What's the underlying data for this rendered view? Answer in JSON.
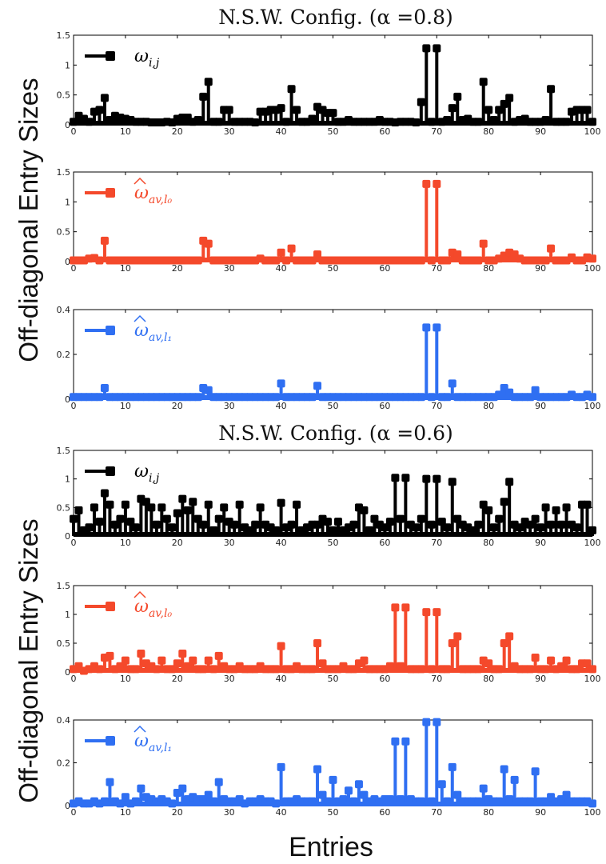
{
  "figure": {
    "ylabel": "Off-diagonal Entry Sizes",
    "xlabel": "Entries"
  },
  "chart_data": [
    {
      "type": "stem",
      "title": "N.S.W. Config. (α =0.8)",
      "series_label": "ω",
      "series_sub": "i,j",
      "hat": false,
      "color": "#000000",
      "ylim": [
        0,
        1.5
      ],
      "yticks": [
        0,
        0.5,
        1,
        1.5
      ],
      "yticklabels": [
        "0",
        "0.5",
        "1",
        "1.5"
      ],
      "xlim": [
        0,
        100
      ],
      "xticks": [
        "0",
        "10",
        "20",
        "30",
        "40",
        "50",
        "60",
        "70",
        "80",
        "90",
        "100"
      ],
      "values": [
        0.05,
        0.15,
        0.1,
        0.05,
        0.22,
        0.25,
        0.45,
        0.08,
        0.15,
        0.12,
        0.1,
        0.08,
        0.05,
        0.05,
        0.05,
        0.04,
        0.04,
        0.04,
        0.05,
        0.04,
        0.1,
        0.12,
        0.12,
        0.05,
        0.08,
        0.47,
        0.72,
        0.05,
        0.05,
        0.25,
        0.25,
        0.05,
        0.05,
        0.05,
        0.05,
        0.04,
        0.22,
        0.22,
        0.25,
        0.25,
        0.28,
        0.05,
        0.6,
        0.25,
        0.05,
        0.05,
        0.1,
        0.3,
        0.25,
        0.2,
        0.2,
        0.05,
        0.05,
        0.08,
        0.05,
        0.05,
        0.05,
        0.05,
        0.05,
        0.08,
        0.05,
        0.05,
        0.04,
        0.05,
        0.05,
        0.05,
        0.04,
        0.38,
        1.28,
        0.05,
        1.28,
        0.05,
        0.08,
        0.28,
        0.47,
        0.08,
        0.1,
        0.05,
        0.05,
        0.72,
        0.25,
        0.08,
        0.25,
        0.35,
        0.45,
        0.05,
        0.08,
        0.1,
        0.05,
        0.05,
        0.05,
        0.08,
        0.6,
        0.05,
        0.05,
        0.05,
        0.22,
        0.25,
        0.25,
        0.25,
        0.05
      ]
    },
    {
      "type": "stem",
      "title": "",
      "series_label": "ω",
      "series_sub": "av,l₀",
      "hat": true,
      "color": "#f4492b",
      "ylim": [
        0,
        1.5
      ],
      "yticks": [
        0,
        0.5,
        1,
        1.5
      ],
      "yticklabels": [
        "0",
        "0.5",
        "1",
        "1.5"
      ],
      "xlim": [
        0,
        100
      ],
      "xticks": [
        "0",
        "10",
        "20",
        "30",
        "40",
        "50",
        "60",
        "70",
        "80",
        "90",
        "100"
      ],
      "values": [
        0.02,
        0.02,
        0.02,
        0.05,
        0.06,
        0.02,
        0.35,
        0.02,
        0.02,
        0.02,
        0.02,
        0.02,
        0.02,
        0.02,
        0.02,
        0.02,
        0.02,
        0.02,
        0.02,
        0.02,
        0.02,
        0.02,
        0.02,
        0.02,
        0.02,
        0.35,
        0.3,
        0.02,
        0.02,
        0.02,
        0.02,
        0.02,
        0.02,
        0.02,
        0.02,
        0.02,
        0.05,
        0.02,
        0.02,
        0.02,
        0.15,
        0.02,
        0.22,
        0.02,
        0.02,
        0.02,
        0.02,
        0.12,
        0.02,
        0.02,
        0.02,
        0.02,
        0.02,
        0.02,
        0.02,
        0.02,
        0.02,
        0.02,
        0.02,
        0.02,
        0.02,
        0.02,
        0.02,
        0.02,
        0.02,
        0.02,
        0.02,
        0.02,
        1.3,
        0.02,
        1.3,
        0.02,
        0.02,
        0.15,
        0.12,
        0.02,
        0.02,
        0.02,
        0.02,
        0.3,
        0.02,
        0.02,
        0.05,
        0.1,
        0.15,
        0.12,
        0.05,
        0.02,
        0.02,
        0.02,
        0.02,
        0.02,
        0.22,
        0.02,
        0.02,
        0.02,
        0.07,
        0.02,
        0.02,
        0.07,
        0.05
      ]
    },
    {
      "type": "stem",
      "title": "",
      "series_label": "ω",
      "series_sub": "av,l₁",
      "hat": true,
      "color": "#2f6ff2",
      "ylim": [
        0,
        0.4
      ],
      "yticks": [
        0,
        0.2,
        0.4
      ],
      "yticklabels": [
        "0",
        "0.2",
        "0.4"
      ],
      "xlim": [
        0,
        100
      ],
      "xticks": [
        "0",
        "10",
        "20",
        "30",
        "40",
        "50",
        "60",
        "70",
        "80",
        "90",
        "100"
      ],
      "values": [
        0.01,
        0.01,
        0.01,
        0.01,
        0.01,
        0.01,
        0.05,
        0.01,
        0.01,
        0.01,
        0.01,
        0.01,
        0.01,
        0.01,
        0.01,
        0.01,
        0.01,
        0.01,
        0.01,
        0.01,
        0.01,
        0.01,
        0.01,
        0.01,
        0.01,
        0.05,
        0.04,
        0.01,
        0.01,
        0.01,
        0.01,
        0.01,
        0.01,
        0.01,
        0.01,
        0.01,
        0.01,
        0.01,
        0.01,
        0.01,
        0.07,
        0.01,
        0.01,
        0.01,
        0.01,
        0.01,
        0.01,
        0.06,
        0.01,
        0.01,
        0.01,
        0.01,
        0.01,
        0.01,
        0.01,
        0.01,
        0.01,
        0.01,
        0.01,
        0.01,
        0.01,
        0.01,
        0.01,
        0.01,
        0.01,
        0.01,
        0.01,
        0.01,
        0.32,
        0.01,
        0.32,
        0.01,
        0.01,
        0.07,
        0.01,
        0.01,
        0.01,
        0.01,
        0.01,
        0.01,
        0.01,
        0.01,
        0.02,
        0.05,
        0.03,
        0.01,
        0.01,
        0.01,
        0.01,
        0.04,
        0.01,
        0.01,
        0.01,
        0.01,
        0.01,
        0.01,
        0.02,
        0.01,
        0.01,
        0.02,
        0.01
      ]
    },
    {
      "type": "stem",
      "title": "N.S.W. Config. (α =0.6)",
      "series_label": "ω",
      "series_sub": "i,j",
      "hat": false,
      "color": "#000000",
      "ylim": [
        0,
        1.5
      ],
      "yticks": [
        0,
        0.5,
        1,
        1.5
      ],
      "yticklabels": [
        "0",
        "0.5",
        "1",
        "1.5"
      ],
      "xlim": [
        0,
        100
      ],
      "xticks": [
        "0",
        "10",
        "20",
        "30",
        "40",
        "50",
        "60",
        "70",
        "80",
        "90",
        "100"
      ],
      "values": [
        0.3,
        0.45,
        0.1,
        0.15,
        0.5,
        0.25,
        0.75,
        0.55,
        0.2,
        0.3,
        0.55,
        0.25,
        0.15,
        0.65,
        0.6,
        0.5,
        0.2,
        0.5,
        0.3,
        0.15,
        0.4,
        0.65,
        0.45,
        0.6,
        0.3,
        0.2,
        0.55,
        0.1,
        0.3,
        0.5,
        0.25,
        0.2,
        0.55,
        0.15,
        0.1,
        0.2,
        0.5,
        0.2,
        0.15,
        0.1,
        0.58,
        0.15,
        0.2,
        0.55,
        0.1,
        0.15,
        0.2,
        0.2,
        0.3,
        0.25,
        0.1,
        0.25,
        0.1,
        0.15,
        0.2,
        0.5,
        0.45,
        0.1,
        0.3,
        0.2,
        0.15,
        0.25,
        1.02,
        0.3,
        1.02,
        0.2,
        0.15,
        0.3,
        1.0,
        0.2,
        1.0,
        0.25,
        0.15,
        0.95,
        0.3,
        0.2,
        0.15,
        0.1,
        0.2,
        0.55,
        0.45,
        0.15,
        0.3,
        0.6,
        0.95,
        0.2,
        0.15,
        0.25,
        0.2,
        0.3,
        0.15,
        0.5,
        0.2,
        0.45,
        0.2,
        0.5,
        0.2,
        0.15,
        0.55,
        0.55,
        0.1
      ]
    },
    {
      "type": "stem",
      "title": "",
      "series_label": "ω",
      "series_sub": "av,l₀",
      "hat": true,
      "color": "#f4492b",
      "ylim": [
        0,
        1.5
      ],
      "yticks": [
        0,
        0.5,
        1,
        1.5
      ],
      "yticklabels": [
        "0",
        "0.5",
        "1",
        "1.5"
      ],
      "xlim": [
        0,
        100
      ],
      "xticks": [
        "0",
        "10",
        "20",
        "30",
        "40",
        "50",
        "60",
        "70",
        "80",
        "90",
        "100"
      ],
      "values": [
        0.05,
        0.1,
        0.02,
        0.05,
        0.1,
        0.05,
        0.25,
        0.28,
        0.05,
        0.1,
        0.2,
        0.05,
        0.05,
        0.32,
        0.15,
        0.1,
        0.05,
        0.2,
        0.05,
        0.05,
        0.15,
        0.32,
        0.1,
        0.2,
        0.05,
        0.05,
        0.2,
        0.05,
        0.28,
        0.1,
        0.05,
        0.05,
        0.1,
        0.05,
        0.05,
        0.05,
        0.1,
        0.05,
        0.05,
        0.05,
        0.45,
        0.05,
        0.05,
        0.1,
        0.05,
        0.05,
        0.05,
        0.5,
        0.15,
        0.05,
        0.05,
        0.05,
        0.1,
        0.05,
        0.05,
        0.15,
        0.2,
        0.05,
        0.05,
        0.05,
        0.05,
        0.1,
        1.12,
        0.1,
        1.12,
        0.05,
        0.05,
        0.05,
        1.04,
        0.05,
        1.04,
        0.05,
        0.05,
        0.5,
        0.62,
        0.05,
        0.05,
        0.05,
        0.05,
        0.2,
        0.15,
        0.05,
        0.05,
        0.5,
        0.62,
        0.1,
        0.05,
        0.05,
        0.05,
        0.25,
        0.05,
        0.05,
        0.2,
        0.05,
        0.1,
        0.2,
        0.05,
        0.05,
        0.15,
        0.15,
        0.05
      ]
    },
    {
      "type": "stem",
      "title": "",
      "series_label": "ω",
      "series_sub": "av,l₁",
      "hat": true,
      "color": "#2f6ff2",
      "ylim": [
        0,
        0.4
      ],
      "yticks": [
        0,
        0.2,
        0.4
      ],
      "yticklabels": [
        "0",
        "0.2",
        "0.4"
      ],
      "xlim": [
        0,
        100
      ],
      "xticks": [
        "0",
        "10",
        "20",
        "30",
        "40",
        "50",
        "60",
        "70",
        "80",
        "90",
        "100"
      ],
      "values": [
        0.01,
        0.02,
        0.01,
        0.01,
        0.02,
        0.01,
        0.02,
        0.11,
        0.02,
        0.01,
        0.04,
        0.01,
        0.02,
        0.08,
        0.04,
        0.03,
        0.02,
        0.03,
        0.02,
        0.01,
        0.06,
        0.08,
        0.03,
        0.04,
        0.03,
        0.03,
        0.05,
        0.02,
        0.11,
        0.03,
        0.02,
        0.02,
        0.03,
        0.01,
        0.02,
        0.02,
        0.03,
        0.02,
        0.02,
        0.01,
        0.18,
        0.02,
        0.02,
        0.03,
        0.02,
        0.02,
        0.02,
        0.17,
        0.05,
        0.02,
        0.12,
        0.02,
        0.03,
        0.07,
        0.02,
        0.1,
        0.05,
        0.02,
        0.03,
        0.02,
        0.03,
        0.03,
        0.3,
        0.03,
        0.3,
        0.03,
        0.02,
        0.02,
        0.39,
        0.02,
        0.39,
        0.1,
        0.02,
        0.18,
        0.05,
        0.02,
        0.02,
        0.02,
        0.02,
        0.08,
        0.03,
        0.02,
        0.02,
        0.17,
        0.03,
        0.12,
        0.02,
        0.02,
        0.02,
        0.16,
        0.02,
        0.02,
        0.04,
        0.02,
        0.03,
        0.05,
        0.02,
        0.02,
        0.02,
        0.02,
        0.01
      ]
    }
  ]
}
